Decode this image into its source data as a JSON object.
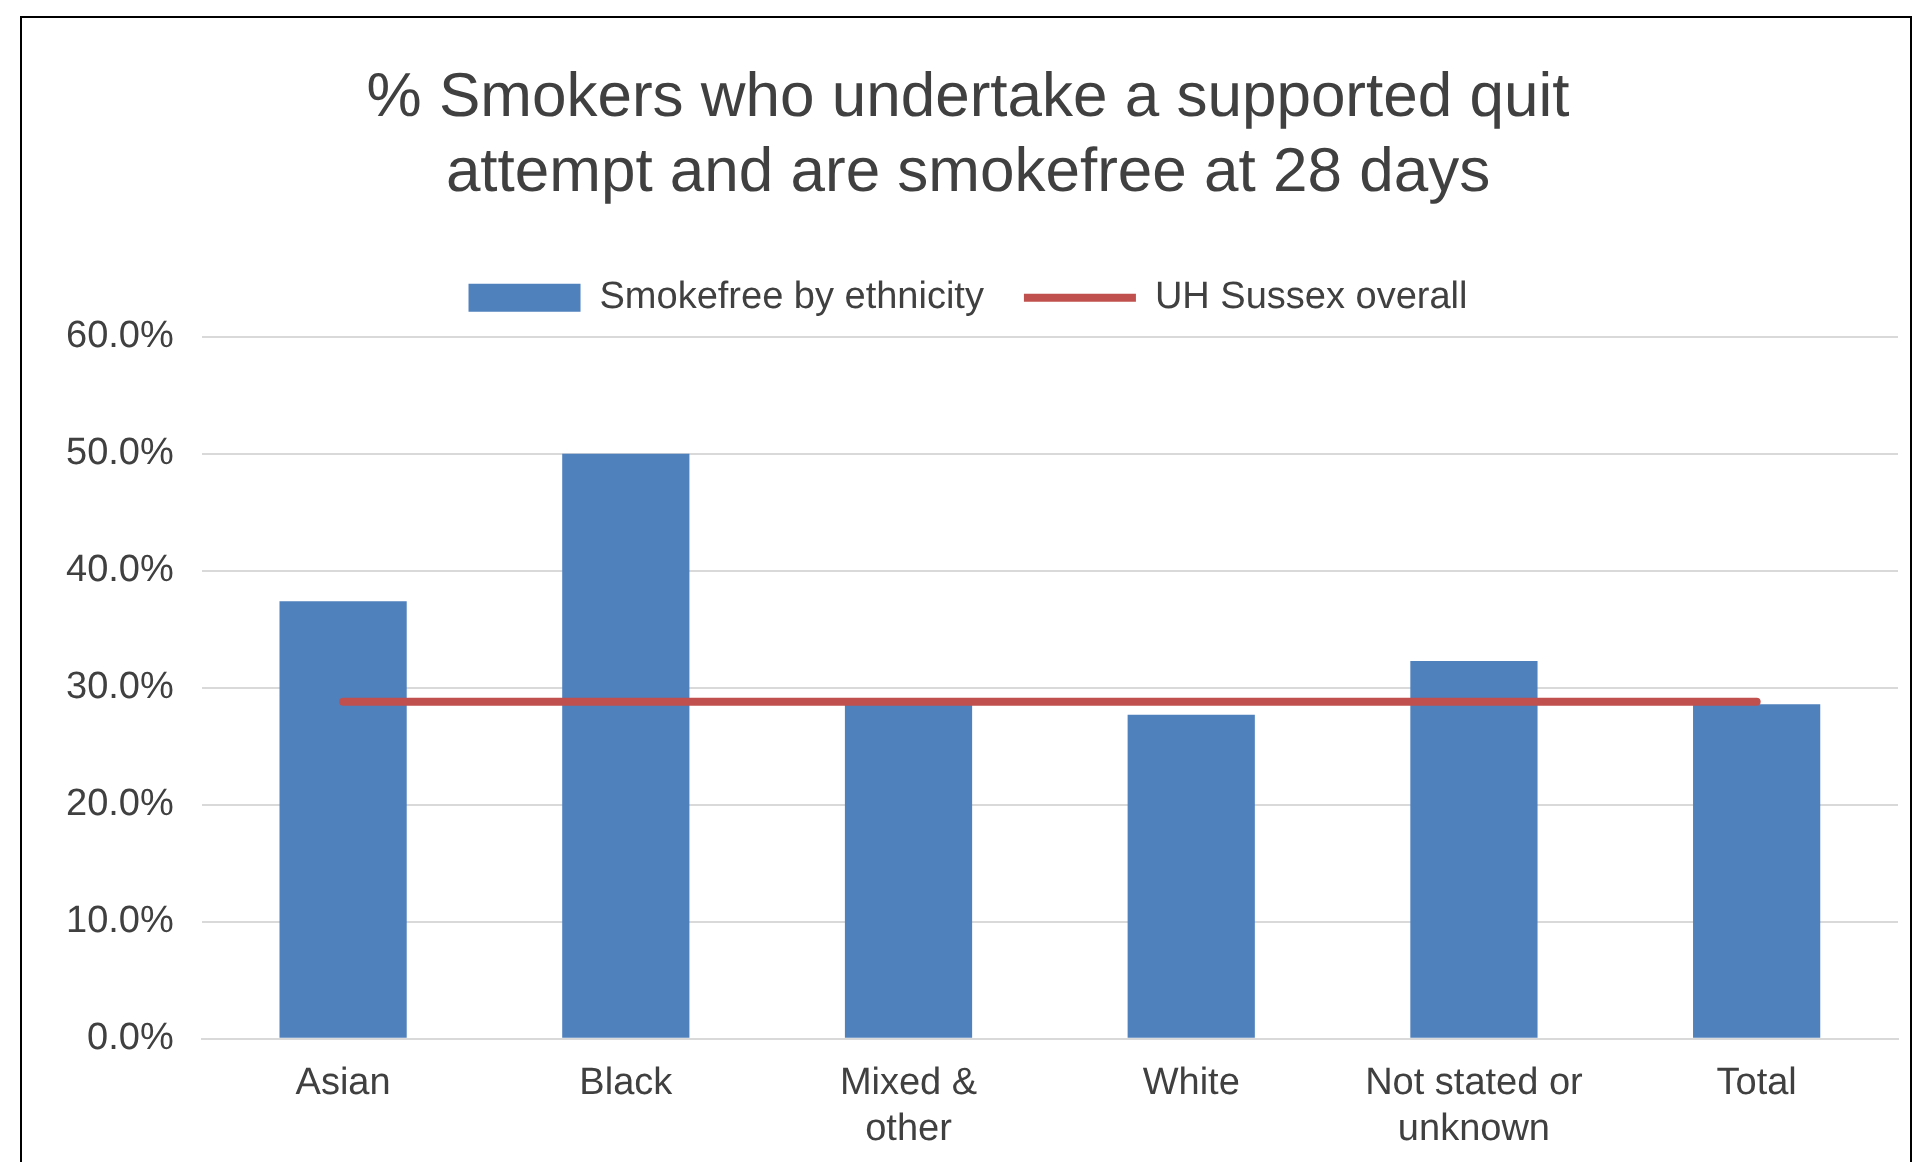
{
  "chart_data": {
    "type": "bar",
    "title": "% Smokers who undertake a supported quit attempt and are smokefree at 28 days",
    "categories": [
      "Asian",
      "Black",
      "Mixed & other",
      "White",
      "Not stated or unknown",
      "Total"
    ],
    "series": [
      {
        "name": "Smokefree by ethnicity",
        "color": "#4f81bd",
        "values": [
          37.4,
          50.0,
          28.6,
          27.7,
          32.3,
          28.6
        ]
      },
      {
        "name": "UH Sussex overall",
        "type": "line",
        "color": "#c0504d",
        "values": [
          28.8,
          28.8,
          28.8,
          28.8,
          28.8,
          28.8
        ]
      }
    ],
    "ylim": [
      0,
      60
    ],
    "yticks": [
      {
        "value": 0,
        "label": "0.0%"
      },
      {
        "value": 10,
        "label": "10.0%"
      },
      {
        "value": 20,
        "label": "20.0%"
      },
      {
        "value": 30,
        "label": "30.0%"
      },
      {
        "value": 40,
        "label": "40.0%"
      },
      {
        "value": 50,
        "label": "50.0%"
      },
      {
        "value": 60,
        "label": "60.0%"
      }
    ],
    "grid": "y",
    "legend": "top",
    "marker": "none"
  }
}
